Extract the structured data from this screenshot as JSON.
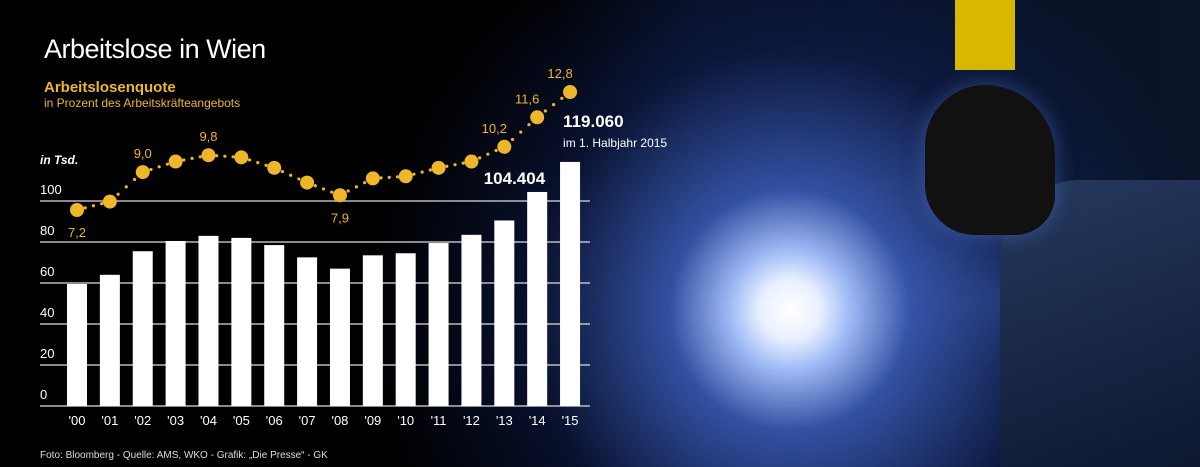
{
  "title": "Arbeitslose in Wien",
  "credit": "Foto: Bloomberg - Quelle: AMS, WKO - Grafik: „Die Presse“ - GK",
  "colors": {
    "bars": "#ffffff",
    "rate": "#f0b62a",
    "background": "#000000"
  },
  "chart_data": [
    {
      "type": "bar",
      "ylabel": "in Tsd.",
      "ylim": [
        0,
        120
      ],
      "yticks": [
        0,
        20,
        40,
        60,
        80,
        100
      ],
      "grid": true,
      "categories": [
        "'00",
        "'01",
        "'02",
        "'03",
        "'04",
        "'05",
        "'06",
        "'07",
        "'08",
        "'09",
        "'10",
        "'11",
        "'12",
        "'13",
        "'14",
        "'15"
      ],
      "values": [
        59.5,
        64,
        75.5,
        80.5,
        83,
        82,
        78.5,
        72.5,
        67,
        73.5,
        74.5,
        79.5,
        83.5,
        90.5,
        104.404,
        119.06
      ],
      "annotations": [
        {
          "category": "'14",
          "label": "104.404"
        },
        {
          "category": "'15",
          "label": "119.060",
          "note": "im 1. Halbjahr 2015"
        }
      ]
    },
    {
      "type": "line",
      "title": "Arbeitslosenquote",
      "subtitle": "in Prozent des Arbeitskräfteangebots",
      "categories": [
        "'00",
        "'01",
        "'02",
        "'03",
        "'04",
        "'05",
        "'06",
        "'07",
        "'08",
        "'09",
        "'10",
        "'11",
        "'12",
        "'13",
        "'14",
        "'15"
      ],
      "values": [
        7.2,
        7.6,
        9.0,
        9.5,
        9.8,
        9.7,
        9.2,
        8.5,
        7.9,
        8.7,
        8.8,
        9.2,
        9.5,
        10.2,
        11.6,
        12.8
      ],
      "labels": {
        "0": "7,2",
        "2": "9,0",
        "4": "9,8",
        "8": "7,9",
        "13": "10,2",
        "14": "11,6",
        "15": "12,8"
      }
    }
  ]
}
